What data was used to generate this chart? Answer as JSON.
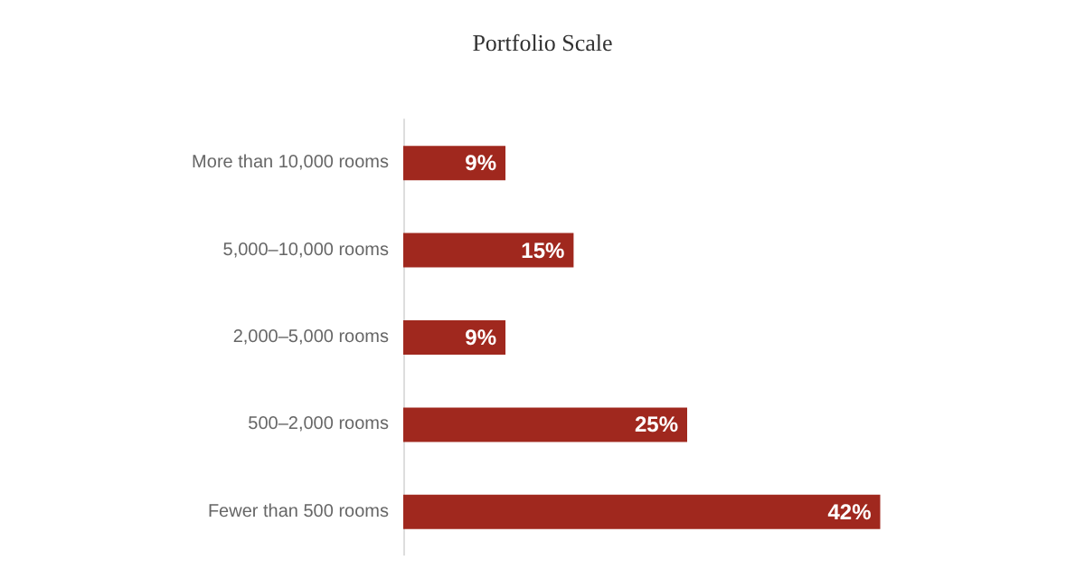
{
  "chart_data": {
    "type": "bar",
    "title": "Portfolio Scale",
    "orientation": "horizontal",
    "categories": [
      "More than 10,000 rooms",
      "5,000–10,000 rooms",
      "2,000–5,000 rooms",
      "500–2,000 rooms",
      "Fewer than 500 rooms"
    ],
    "values": [
      9,
      15,
      9,
      25,
      42
    ],
    "value_labels": [
      "9%",
      "15%",
      "9%",
      "25%",
      "42%"
    ],
    "color": "#a0281e"
  }
}
